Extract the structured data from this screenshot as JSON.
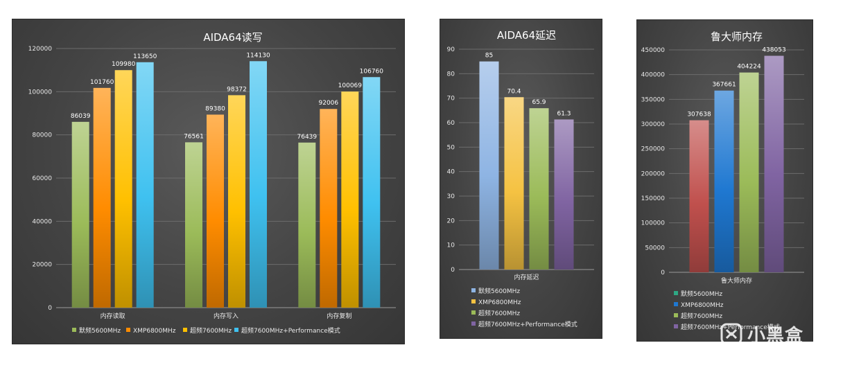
{
  "charts": [
    {
      "type": "bar",
      "title": "AIDA64读写",
      "categories": [
        "内存读取",
        "内存写入",
        "内存复制"
      ],
      "series": [
        {
          "name": "默频5600MHz",
          "values": [
            86039,
            76561,
            76439
          ]
        },
        {
          "name": "XMP6800MHz",
          "values": [
            101760,
            89380,
            92006
          ]
        },
        {
          "name": "超频7600MHz",
          "values": [
            109980,
            98372,
            100069
          ]
        },
        {
          "name": "超频7600MHz+Performance模式",
          "values": [
            113650,
            114130,
            106760
          ]
        }
      ],
      "ylim": [
        0,
        120000
      ],
      "yticks": [
        0,
        20000,
        40000,
        60000,
        80000,
        100000,
        120000
      ],
      "colors": [
        "#9bbb59",
        "#ff8c00",
        "#ffc000",
        "#3fc1f0"
      ],
      "grid": true,
      "legend": "bottom"
    },
    {
      "type": "bar",
      "title": "AIDA64延迟",
      "categories": [
        "内存延迟"
      ],
      "series": [
        {
          "name": "默频5600MHz",
          "values": [
            85
          ]
        },
        {
          "name": "XMP6800MHz",
          "values": [
            70.4
          ]
        },
        {
          "name": "超频7600MHz",
          "values": [
            65.9
          ]
        },
        {
          "name": "超频7600MHz+Performance模式",
          "values": [
            61.3
          ]
        }
      ],
      "ylim": [
        0,
        90
      ],
      "yticks": [
        0,
        10,
        20,
        30,
        40,
        50,
        60,
        70,
        80,
        90
      ],
      "colors": [
        "#8eb4e3",
        "#f5c242",
        "#9bbb59",
        "#8064a2"
      ],
      "grid": true,
      "legend": "bottom"
    },
    {
      "type": "bar",
      "title": "鲁大师内存",
      "categories": [
        "鲁大师内存"
      ],
      "series": [
        {
          "name": "默频5600MHz",
          "values": [
            307638
          ]
        },
        {
          "name": "XMP6800MHz",
          "values": [
            367661
          ]
        },
        {
          "name": "超频7600MHz",
          "values": [
            404224
          ]
        },
        {
          "name": "超频7600MHz+Performance模式",
          "values": [
            438053
          ]
        }
      ],
      "ylim": [
        0,
        450000
      ],
      "yticks": [
        0,
        50000,
        100000,
        150000,
        200000,
        250000,
        300000,
        350000,
        400000,
        450000
      ],
      "colors": [
        "#c0504d",
        "#1f78d1",
        "#9bbb59",
        "#8064a2"
      ],
      "legend_colors": [
        "#2ea884",
        "#1f78d1",
        "#9bbb59",
        "#8064a2"
      ],
      "grid": true,
      "legend": "bottom"
    }
  ],
  "watermark": {
    "text": "小黑盒"
  }
}
